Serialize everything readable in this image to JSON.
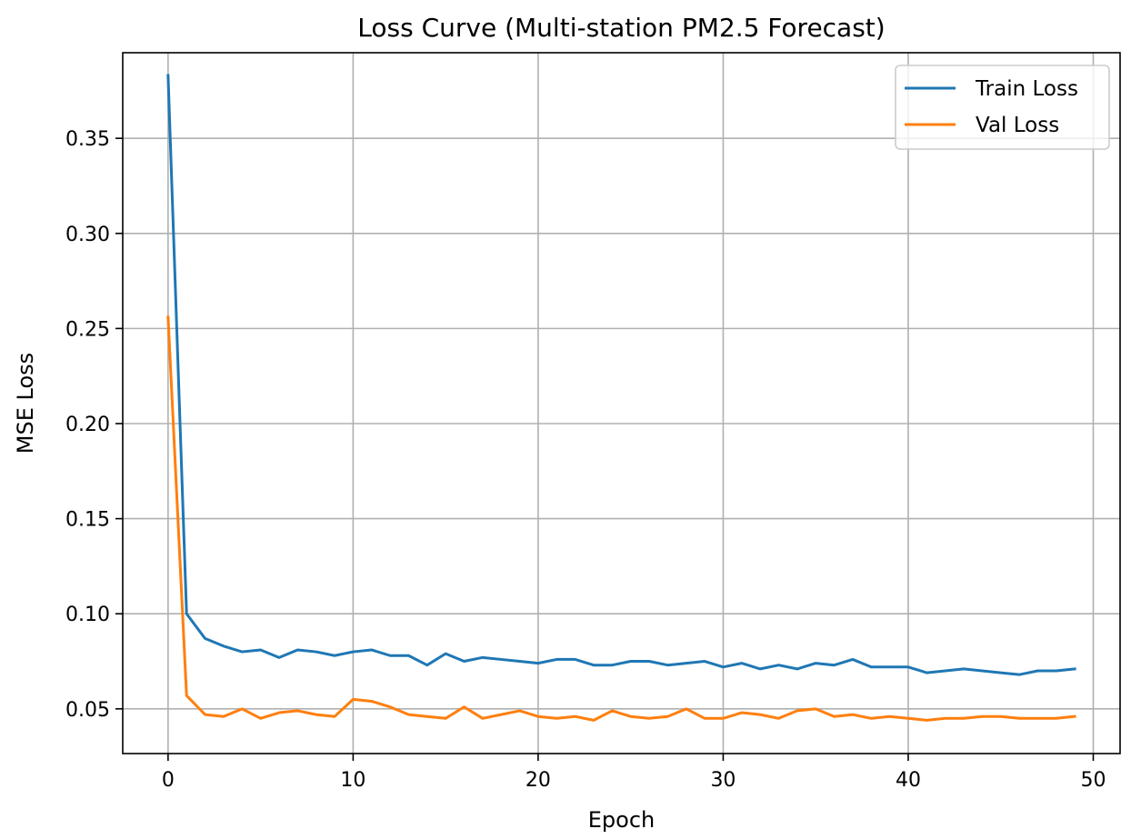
{
  "chart_data": {
    "type": "line",
    "title": "Loss Curve (Multi-station PM2.5 Forecast)",
    "xlabel": "Epoch",
    "ylabel": "MSE Loss",
    "xlim": [
      -2.45,
      51.45
    ],
    "ylim": [
      0.0265,
      0.395
    ],
    "xticks": [
      0,
      10,
      20,
      30,
      40,
      50
    ],
    "xtick_labels": [
      "0",
      "10",
      "20",
      "30",
      "40",
      "50"
    ],
    "yticks": [
      0.05,
      0.1,
      0.15,
      0.2,
      0.25,
      0.3,
      0.35
    ],
    "ytick_labels": [
      "0.05",
      "0.10",
      "0.15",
      "0.20",
      "0.25",
      "0.30",
      "0.35"
    ],
    "grid": true,
    "legend_position": "top-right",
    "x": [
      0,
      1,
      2,
      3,
      4,
      5,
      6,
      7,
      8,
      9,
      10,
      11,
      12,
      13,
      14,
      15,
      16,
      17,
      18,
      19,
      20,
      21,
      22,
      23,
      24,
      25,
      26,
      27,
      28,
      29,
      30,
      31,
      32,
      33,
      34,
      35,
      36,
      37,
      38,
      39,
      40,
      41,
      42,
      43,
      44,
      45,
      46,
      47,
      48,
      49
    ],
    "series": [
      {
        "name": "Train Loss",
        "color": "#1f77b4",
        "values": [
          0.383,
          0.1,
          0.087,
          0.083,
          0.08,
          0.081,
          0.077,
          0.081,
          0.08,
          0.078,
          0.08,
          0.081,
          0.078,
          0.078,
          0.073,
          0.079,
          0.075,
          0.077,
          0.076,
          0.075,
          0.074,
          0.076,
          0.076,
          0.073,
          0.073,
          0.075,
          0.075,
          0.073,
          0.074,
          0.075,
          0.072,
          0.074,
          0.071,
          0.073,
          0.071,
          0.074,
          0.073,
          0.076,
          0.072,
          0.072,
          0.072,
          0.069,
          0.07,
          0.071,
          0.07,
          0.069,
          0.068,
          0.07,
          0.07,
          0.071
        ]
      },
      {
        "name": "Val Loss",
        "color": "#ff7f0e",
        "values": [
          0.256,
          0.057,
          0.047,
          0.046,
          0.05,
          0.045,
          0.048,
          0.049,
          0.047,
          0.046,
          0.055,
          0.054,
          0.051,
          0.047,
          0.046,
          0.045,
          0.051,
          0.045,
          0.047,
          0.049,
          0.046,
          0.045,
          0.046,
          0.044,
          0.049,
          0.046,
          0.045,
          0.046,
          0.05,
          0.045,
          0.045,
          0.048,
          0.047,
          0.045,
          0.049,
          0.05,
          0.046,
          0.047,
          0.045,
          0.046,
          0.045,
          0.044,
          0.045,
          0.045,
          0.046,
          0.046,
          0.045,
          0.045,
          0.045,
          0.046
        ]
      }
    ]
  }
}
